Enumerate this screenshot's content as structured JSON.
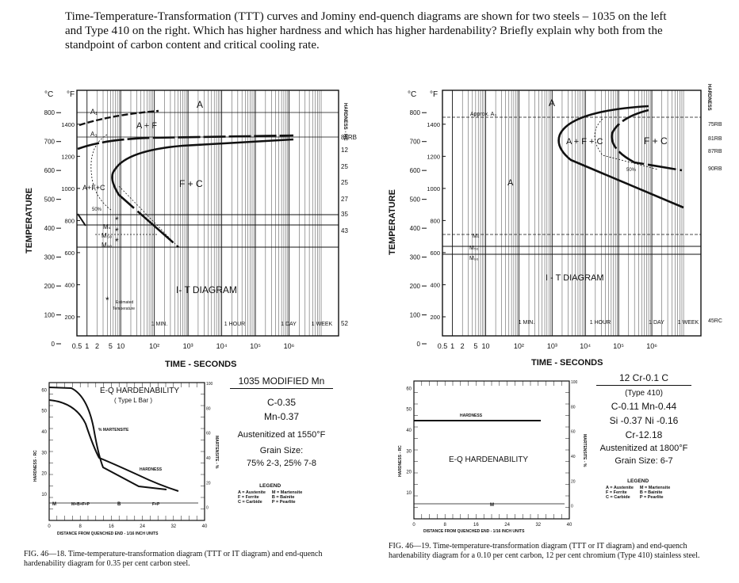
{
  "question": "Time-Temperature-Transformation (TTT) curves and Jominy end-quench diagrams are shown for two steels – 1035 on the left and Type 410 on the right.  Which has higher hardness and which has higher hardenability?  Briefly explain why both from the standpoint of carbon content and critical cooling rate.",
  "left": {
    "ttt": {
      "unit_c": "°C",
      "unit_f": "°F",
      "ylabel": "TEMPERATURE",
      "xlabel": "TIME - SECONDS",
      "hardness_axis": "HARDNESS - RC",
      "c_ticks": [
        "800",
        "700",
        "600",
        "500",
        "400",
        "300",
        "200",
        "100",
        "0"
      ],
      "f_ticks": [
        "1400",
        "1200",
        "1000",
        "800",
        "600",
        "400",
        "200"
      ],
      "x_ticks": [
        "0.5",
        "1",
        "2",
        "5",
        "10",
        "10²",
        "10³",
        "10⁴",
        "10⁵",
        "10⁶"
      ],
      "time_marks": [
        "1 MIN.",
        "1 HOUR",
        "1 DAY",
        "1 WEEK"
      ],
      "region_labels": {
        "a_top": "A",
        "a1": "A₁",
        "a_plus_f": "A + F",
        "a3": "A₃",
        "a_f_c": "A+F+C",
        "f_c": "F + C",
        "pct50": "50%",
        "ms": "Mₛ",
        "m50": "M₅₀",
        "m90": "M₉₀",
        "title": "I- T DIAGRAM",
        "estimated": "Estimated",
        "temperature": "Temperature",
        "star": "*"
      },
      "hardness_values": [
        "85RB",
        "12",
        "25",
        "25",
        "27",
        "35",
        "43",
        "52"
      ]
    },
    "eq": {
      "title": "E-Q HARDENABILITY",
      "subtitle": "( Type L Bar )",
      "ylabel": "HARDNESS - RC",
      "rlabel": "MARTENSITE - %",
      "xlabel": "DISTANCE FROM QUENCHED END - 1/16 INCH UNITS",
      "martensite_label": "% MARTENSITE",
      "hardness_label": "HARDNESS",
      "y_ticks": [
        "60",
        "50",
        "40",
        "30",
        "20",
        "10"
      ],
      "r_ticks": [
        "100",
        "80",
        "60",
        "40",
        "20",
        "0"
      ],
      "x_ticks": [
        "0",
        "8",
        "16",
        "24",
        "32",
        "40"
      ],
      "bar_labels": [
        "M",
        "M+B+F+P",
        "B",
        "F+P"
      ]
    },
    "spec": {
      "title": "1035 MODIFIED Mn",
      "c": "C-0.35",
      "mn": "Mn-0.37",
      "aust": "Austenitized at 1550°F",
      "grain_label": "Grain Size:",
      "grain": "75% 2-3, 25% 7-8"
    },
    "legend": {
      "title": "LEGEND",
      "a": "A = Austenite",
      "f": "F = Ferrite",
      "c": "C = Carbide",
      "m": "M = Martensite",
      "b": "B = Bainite",
      "p": "P = Pearlite"
    },
    "caption": "FIG. 46—18.  Time-temperature-transformation diagram (TTT or IT diagram) and end-quench hardenability diagram for 0.35 per cent carbon steel."
  },
  "right": {
    "ttt": {
      "unit_c": "°C",
      "unit_f": "°F",
      "ylabel": "TEMPERATURE",
      "xlabel": "TIME - SECONDS",
      "hardness_axis": "HARDNESS",
      "c_ticks": [
        "800",
        "700",
        "600",
        "500",
        "400",
        "300",
        "200",
        "100",
        "0"
      ],
      "f_ticks": [
        "1400",
        "1200",
        "1000",
        "800",
        "600",
        "400",
        "200"
      ],
      "x_ticks": [
        "0.5",
        "1",
        "2",
        "5",
        "10",
        "10²",
        "10³",
        "10⁴",
        "10⁵",
        "10⁶"
      ],
      "time_marks": [
        "1 MIN.",
        "1 HOUR",
        "1 DAY",
        "1 WEEK"
      ],
      "region_labels": {
        "a_top": "A",
        "approx": "Approx. A₃",
        "a_f_c": "A + F + C",
        "f_c": "F + C",
        "pct50": "50%",
        "a_mid": "A",
        "ms": "Mₛ",
        "m50": "M₅₀",
        "m90": "M₉₀",
        "title": "I - T  DIAGRAM"
      },
      "hardness_values": [
        "75RB",
        "81RB",
        "87RB",
        "90RB",
        "45RC"
      ]
    },
    "eq": {
      "title": "E-Q HARDENABILITY",
      "ylabel": "HARDNESS - RC",
      "rlabel": "MARTENSITE - %",
      "xlabel": "DISTANCE FROM QUENCHED END - 1/16 INCH UNITS",
      "hardness_label": "HARDNESS",
      "y_ticks": [
        "60",
        "50",
        "40",
        "30",
        "20",
        "10"
      ],
      "r_ticks": [
        "100",
        "80",
        "60",
        "40",
        "20",
        "0"
      ],
      "x_ticks": [
        "0",
        "8",
        "16",
        "24",
        "32",
        "40"
      ],
      "bar_label": "M"
    },
    "spec": {
      "title": "12 Cr-0.1 C",
      "type": "(Type 410)",
      "line1": "C-0.11   Mn-0.44",
      "line2": "Si -0.37   Ni -0.16",
      "line3": "Cr-12.18",
      "aust": "Austenitized at 1800°F",
      "grain": "Grain Size: 6-7"
    },
    "legend": {
      "title": "LEGEND",
      "a": "A = Austenite",
      "f": "F = Ferrite",
      "c": "C = Carbide",
      "m": "M = Martensite",
      "b": "B = Bainite",
      "p": "P = Pearlite"
    },
    "caption": "FIG. 46—19.  Time-temperature-transformation diagram (TTT or IT diagram) and end-quench hardenability diagram for a 0.10 per cent carbon, 12 per cent chromium (Type 410) stainless steel."
  }
}
